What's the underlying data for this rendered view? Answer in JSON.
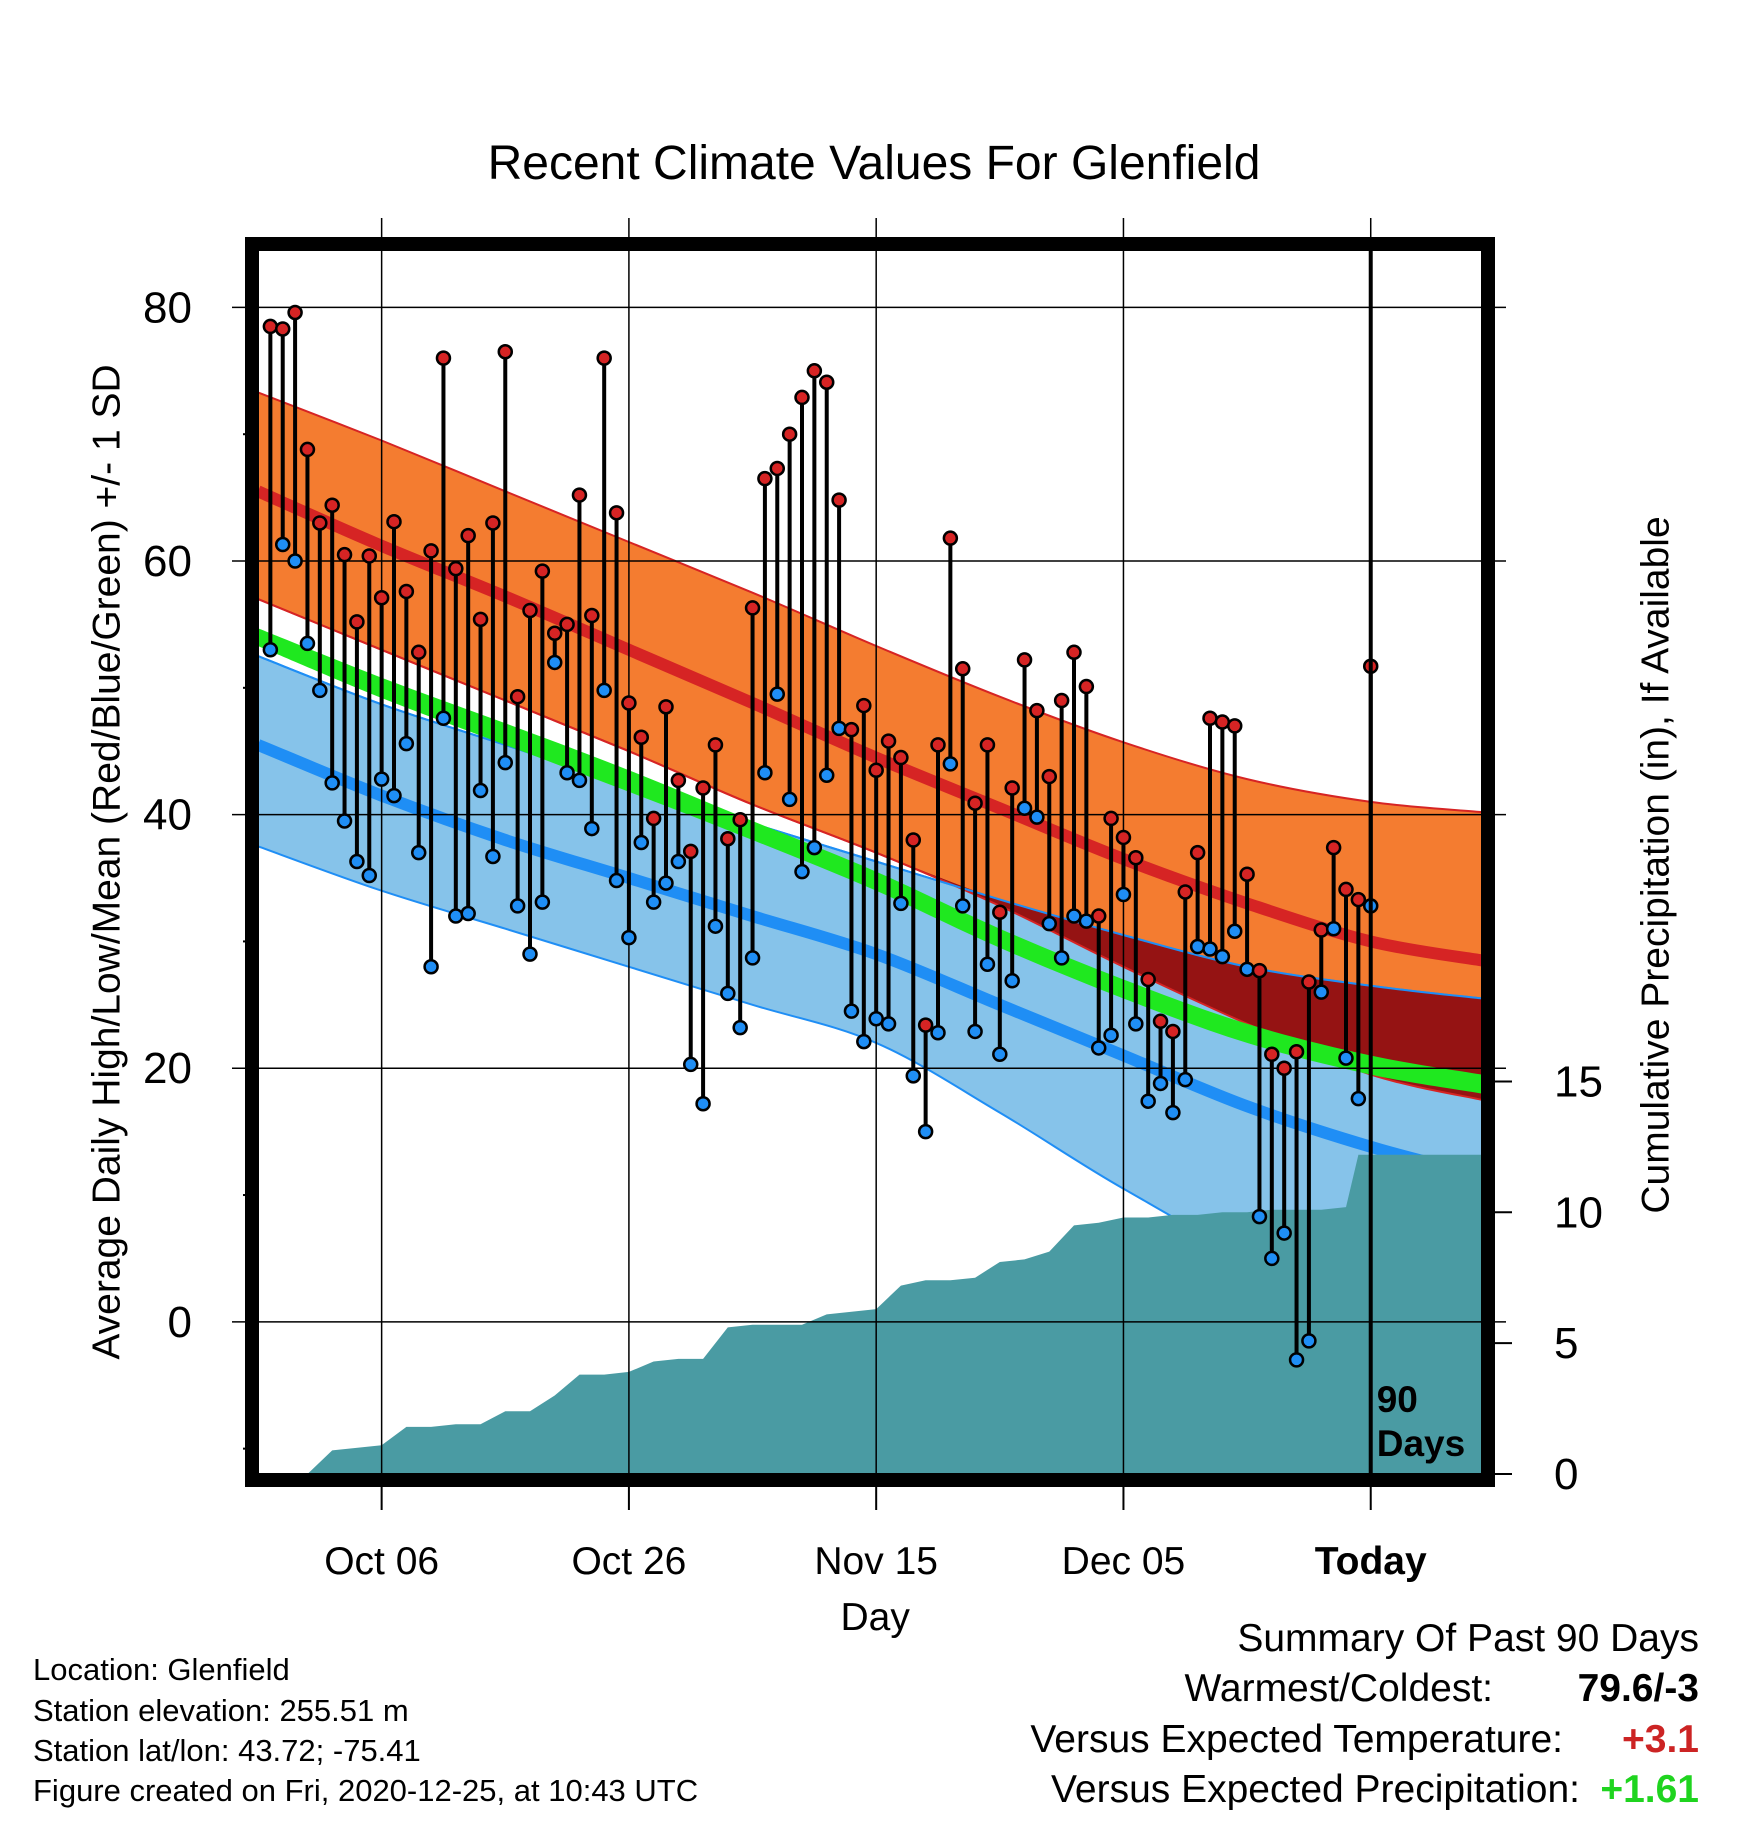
{
  "chart_data": {
    "type": "line",
    "title": "Recent Climate Values For Glenfield",
    "xlabel": "Day",
    "ylabel": "Average Daily High/Low/Mean (Red/Blue/Green) +/- 1 SD",
    "y2label": "Cumulative Precipitation (in), If Available",
    "x_ticks": [
      "Oct 06",
      "Oct 26",
      "Nov 15",
      "Dec 05",
      "Today"
    ],
    "y_ticks": [
      0,
      20,
      40,
      60,
      80
    ],
    "y2_ticks": [
      0,
      5,
      10,
      15
    ],
    "ylim": [
      -12,
      85
    ],
    "y2lim": [
      0,
      47
    ],
    "day_range": [
      -90,
      9
    ],
    "today_marker": {
      "day": 0,
      "label": [
        "90",
        "Days"
      ]
    },
    "grid": true,
    "normals": {
      "days": [
        -90,
        -80,
        -70,
        -60,
        -50,
        -40,
        -30,
        -20,
        -10,
        0,
        9
      ],
      "high_upper": [
        73.3,
        69.5,
        65.5,
        61.5,
        57.5,
        53.3,
        49.3,
        45.7,
        42.8,
        41.0,
        40.2
      ],
      "high_mean": [
        65.5,
        61.2,
        57.2,
        53.0,
        48.8,
        44.5,
        40.5,
        36.5,
        33.0,
        30.0,
        28.5
      ],
      "high_lower": [
        57.0,
        53.0,
        49.0,
        45.0,
        40.8,
        37.0,
        32.8,
        28.0,
        23.5,
        19.5,
        17.5
      ],
      "mean_upper": [
        54.7,
        50.8,
        47.2,
        43.5,
        39.5,
        35.5,
        31.0,
        27.0,
        23.5,
        21.0,
        19.5
      ],
      "mean_lower": [
        53.3,
        49.2,
        45.5,
        41.8,
        38.0,
        34.0,
        29.5,
        25.5,
        22.0,
        19.5,
        18.0
      ],
      "low_upper": [
        52.5,
        48.7,
        45.5,
        42.3,
        39.3,
        36.3,
        33.3,
        30.5,
        28.0,
        26.5,
        25.5
      ],
      "low_mean": [
        45.5,
        41.5,
        38.0,
        35.0,
        32.0,
        29.0,
        25.0,
        21.0,
        17.0,
        13.8,
        11.5
      ],
      "low_lower": [
        37.5,
        34.0,
        31.0,
        28.0,
        25.0,
        22.0,
        16.5,
        10.5,
        5.5,
        4.0,
        4.0
      ]
    },
    "daily": [
      {
        "day": -89,
        "high": 78.5,
        "low": 53.0
      },
      {
        "day": -88,
        "high": 78.3,
        "low": 61.3
      },
      {
        "day": -87,
        "high": 79.6,
        "low": 60.0
      },
      {
        "day": -86,
        "high": 68.8,
        "low": 53.5
      },
      {
        "day": -85,
        "high": 63.0,
        "low": 49.8
      },
      {
        "day": -84,
        "high": 64.4,
        "low": 42.5
      },
      {
        "day": -83,
        "high": 60.5,
        "low": 39.5
      },
      {
        "day": -82,
        "high": 55.2,
        "low": 36.3
      },
      {
        "day": -81,
        "high": 60.4,
        "low": 35.2
      },
      {
        "day": -80,
        "high": 57.1,
        "low": 42.8
      },
      {
        "day": -79,
        "high": 63.1,
        "low": 41.5
      },
      {
        "day": -78,
        "high": 57.6,
        "low": 45.6
      },
      {
        "day": -77,
        "high": 52.8,
        "low": 37.0
      },
      {
        "day": -76,
        "high": 60.8,
        "low": 28.0
      },
      {
        "day": -75,
        "high": 76.0,
        "low": 47.6
      },
      {
        "day": -74,
        "high": 59.4,
        "low": 32.0
      },
      {
        "day": -73,
        "high": 62.0,
        "low": 32.2
      },
      {
        "day": -72,
        "high": 55.4,
        "low": 41.9
      },
      {
        "day": -71,
        "high": 63.0,
        "low": 36.7
      },
      {
        "day": -70,
        "high": 76.5,
        "low": 44.1
      },
      {
        "day": -69,
        "high": 49.3,
        "low": 32.8
      },
      {
        "day": -68,
        "high": 56.1,
        "low": 29.0
      },
      {
        "day": -67,
        "high": 59.2,
        "low": 33.1
      },
      {
        "day": -66,
        "high": 54.3,
        "low": 52.0
      },
      {
        "day": -65,
        "high": 55.0,
        "low": 43.3
      },
      {
        "day": -64,
        "high": 65.2,
        "low": 42.7
      },
      {
        "day": -63,
        "high": 55.7,
        "low": 38.9
      },
      {
        "day": -62,
        "high": 76.0,
        "low": 49.8
      },
      {
        "day": -61,
        "high": 63.8,
        "low": 34.8
      },
      {
        "day": -60,
        "high": 48.8,
        "low": 30.3
      },
      {
        "day": -59,
        "high": 46.1,
        "low": 37.8
      },
      {
        "day": -58,
        "high": 39.7,
        "low": 33.1
      },
      {
        "day": -57,
        "high": 48.5,
        "low": 34.6
      },
      {
        "day": -56,
        "high": 42.7,
        "low": 36.3
      },
      {
        "day": -55,
        "high": 37.1,
        "low": 20.3
      },
      {
        "day": -54,
        "high": 42.1,
        "low": 17.2
      },
      {
        "day": -53,
        "high": 45.5,
        "low": 31.2
      },
      {
        "day": -52,
        "high": 38.1,
        "low": 25.9
      },
      {
        "day": -51,
        "high": 39.6,
        "low": 23.2
      },
      {
        "day": -50,
        "high": 56.3,
        "low": 28.7
      },
      {
        "day": -49,
        "high": 66.5,
        "low": 43.3
      },
      {
        "day": -48,
        "high": 67.3,
        "low": 49.5
      },
      {
        "day": -47,
        "high": 70.0,
        "low": 41.2
      },
      {
        "day": -46,
        "high": 72.9,
        "low": 35.5
      },
      {
        "day": -45,
        "high": 75.0,
        "low": 37.4
      },
      {
        "day": -44,
        "high": 74.1,
        "low": 43.1
      },
      {
        "day": -43,
        "high": 64.8,
        "low": 46.8
      },
      {
        "day": -42,
        "high": 46.7,
        "low": 24.5
      },
      {
        "day": -41,
        "high": 48.6,
        "low": 22.1
      },
      {
        "day": -40,
        "high": 43.5,
        "low": 23.9
      },
      {
        "day": -39,
        "high": 45.8,
        "low": 23.5
      },
      {
        "day": -38,
        "high": 44.5,
        "low": 33.0
      },
      {
        "day": -37,
        "high": 38.0,
        "low": 19.4
      },
      {
        "day": -36,
        "high": 23.4,
        "low": 15.0
      },
      {
        "day": -35,
        "high": 45.5,
        "low": 22.8
      },
      {
        "day": -34,
        "high": 61.8,
        "low": 44.0
      },
      {
        "day": -33,
        "high": 51.5,
        "low": 32.8
      },
      {
        "day": -32,
        "high": 40.9,
        "low": 22.9
      },
      {
        "day": -31,
        "high": 45.5,
        "low": 28.2
      },
      {
        "day": -30,
        "high": 32.3,
        "low": 21.1
      },
      {
        "day": -29,
        "high": 42.1,
        "low": 26.9
      },
      {
        "day": -28,
        "high": 52.2,
        "low": 40.5
      },
      {
        "day": -27,
        "high": 48.2,
        "low": 39.8
      },
      {
        "day": -26,
        "high": 43.0,
        "low": 31.4
      },
      {
        "day": -25,
        "high": 49.0,
        "low": 28.7
      },
      {
        "day": -24,
        "high": 52.8,
        "low": 32.0
      },
      {
        "day": -23,
        "high": 50.1,
        "low": 31.6
      },
      {
        "day": -22,
        "high": 32.0,
        "low": 21.6
      },
      {
        "day": -21,
        "high": 39.7,
        "low": 22.6
      },
      {
        "day": -20,
        "high": 38.2,
        "low": 33.7
      },
      {
        "day": -19,
        "high": 36.6,
        "low": 23.5
      },
      {
        "day": -18,
        "high": 27.0,
        "low": 17.4
      },
      {
        "day": -17,
        "high": 23.7,
        "low": 18.8
      },
      {
        "day": -16,
        "high": 22.9,
        "low": 16.5
      },
      {
        "day": -15,
        "high": 33.9,
        "low": 19.1
      },
      {
        "day": -14,
        "high": 37.0,
        "low": 29.6
      },
      {
        "day": -13,
        "high": 47.6,
        "low": 29.4
      },
      {
        "day": -12,
        "high": 47.3,
        "low": 28.8
      },
      {
        "day": -11,
        "high": 47.0,
        "low": 30.8
      },
      {
        "day": -10,
        "high": 35.3,
        "low": 27.8
      },
      {
        "day": -9,
        "high": 27.7,
        "low": 8.3
      },
      {
        "day": -8,
        "high": 21.1,
        "low": 5.0
      },
      {
        "day": -7,
        "high": 20.0,
        "low": 7.0
      },
      {
        "day": -6,
        "high": 21.3,
        "low": -3.0
      },
      {
        "day": -5,
        "high": 26.8,
        "low": -1.5
      },
      {
        "day": -4,
        "high": 30.9,
        "low": 26.0
      },
      {
        "day": -3,
        "high": 37.4,
        "low": 31.0
      },
      {
        "day": -2,
        "high": 34.1,
        "low": 20.8
      },
      {
        "day": -1,
        "high": 33.3,
        "low": 17.6
      },
      {
        "day": 0,
        "high": 51.7,
        "low": 32.8
      }
    ],
    "precip_cumulative": {
      "days": [
        -90,
        -86,
        -84,
        -80,
        -78,
        -76,
        -74,
        -72,
        -70,
        -68,
        -66,
        -64,
        -62,
        -60,
        -58,
        -56,
        -54,
        -52,
        -50,
        -48,
        -46,
        -44,
        -42,
        -40,
        -38,
        -36,
        -34,
        -32,
        -30,
        -28,
        -26,
        -24,
        -22,
        -20,
        -18,
        -16,
        -14,
        -12,
        -10,
        -8,
        -6,
        -4,
        -2,
        -1,
        0,
        9
      ],
      "values": [
        0.0,
        0.0,
        0.9,
        1.1,
        1.8,
        1.8,
        1.9,
        1.9,
        2.4,
        2.4,
        3.0,
        3.8,
        3.8,
        3.9,
        4.3,
        4.4,
        4.4,
        5.6,
        5.7,
        5.7,
        5.7,
        6.1,
        6.2,
        6.3,
        7.2,
        7.4,
        7.4,
        7.5,
        8.1,
        8.2,
        8.5,
        9.5,
        9.6,
        9.8,
        9.8,
        9.9,
        9.9,
        10.0,
        10.0,
        10.1,
        10.1,
        10.1,
        10.2,
        12.2,
        12.2,
        12.2
      ]
    }
  },
  "footer": {
    "location": "Location: Glenfield",
    "elevation": "Station elevation: 255.51 m",
    "latlon": "Station lat/lon: 43.72; -75.41",
    "created": "Figure created on Fri, 2020-12-25, at 10:43 UTC"
  },
  "summary": {
    "heading": "Summary Of Past 90 Days",
    "warmest_coldest_label": "Warmest/Coldest:",
    "warmest_coldest_value": "79.6/-3",
    "temp_label": "Versus Expected Temperature:",
    "temp_value": "+3.1",
    "precip_label": "Versus Expected Precipitation:",
    "precip_value": "+1.61"
  },
  "colors": {
    "high_band": "#f47c30",
    "high_mean": "#d62424",
    "mean_band": "#1fe81f",
    "low_band": "#86c3ea",
    "low_mean": "#1f8ef5",
    "overlap": "#951313",
    "precip": "#4a9ba3",
    "high_point": "#d62424",
    "low_point": "#1f8ef5",
    "temp_value": "#cc2424",
    "precip_value": "#1fd41f"
  }
}
